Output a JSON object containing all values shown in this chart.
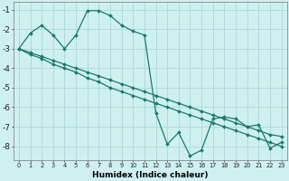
{
  "xlabel": "Humidex (Indice chaleur)",
  "bg_color": "#cff0f0",
  "grid_color": "#aad8d8",
  "line_color": "#1a7a6e",
  "xlim": [
    -0.5,
    23.5
  ],
  "ylim": [
    -8.7,
    -0.6
  ],
  "yticks": [
    -1,
    -2,
    -3,
    -4,
    -5,
    -6,
    -7,
    -8
  ],
  "xticks": [
    0,
    1,
    2,
    3,
    4,
    5,
    6,
    7,
    8,
    9,
    10,
    11,
    12,
    13,
    14,
    15,
    16,
    17,
    18,
    19,
    20,
    21,
    22,
    23
  ],
  "series": [
    {
      "x": [
        0,
        1,
        2,
        3,
        4,
        5,
        6,
        7,
        8,
        9,
        10,
        11,
        12,
        13,
        14,
        15,
        16,
        17,
        18,
        19,
        20,
        21,
        22,
        23
      ],
      "y": [
        -3.0,
        -2.2,
        -1.8,
        -2.3,
        -3.0,
        -2.3,
        -1.05,
        -1.05,
        -1.3,
        -1.8,
        -2.1,
        -2.3,
        -6.3,
        -7.9,
        -7.3,
        -8.5,
        -8.2,
        -6.6,
        -6.5,
        -6.6,
        -7.0,
        -6.9,
        -8.1,
        -7.8
      ]
    },
    {
      "x": [
        0,
        1,
        2,
        3,
        4,
        5,
        6,
        7,
        8,
        9,
        10,
        11,
        12,
        13,
        14,
        15,
        16,
        17,
        18,
        19,
        20,
        21,
        22,
        23
      ],
      "y": [
        -3.0,
        -3.2,
        -3.4,
        -3.6,
        -3.8,
        -4.0,
        -4.2,
        -4.4,
        -4.6,
        -4.8,
        -5.0,
        -5.2,
        -5.4,
        -5.6,
        -5.8,
        -6.0,
        -6.2,
        -6.4,
        -6.6,
        -6.8,
        -7.0,
        -7.2,
        -7.4,
        -7.5
      ]
    },
    {
      "x": [
        0,
        1,
        2,
        3,
        4,
        5,
        6,
        7,
        8,
        9,
        10,
        11,
        12,
        13,
        14,
        15,
        16,
        17,
        18,
        19,
        20,
        21,
        22,
        23
      ],
      "y": [
        -3.0,
        -3.3,
        -3.5,
        -3.8,
        -4.0,
        -4.2,
        -4.5,
        -4.7,
        -5.0,
        -5.2,
        -5.4,
        -5.6,
        -5.8,
        -6.0,
        -6.2,
        -6.4,
        -6.6,
        -6.8,
        -7.0,
        -7.2,
        -7.4,
        -7.6,
        -7.8,
        -8.0
      ]
    }
  ],
  "markersize": 2.0,
  "linewidth": 0.9
}
